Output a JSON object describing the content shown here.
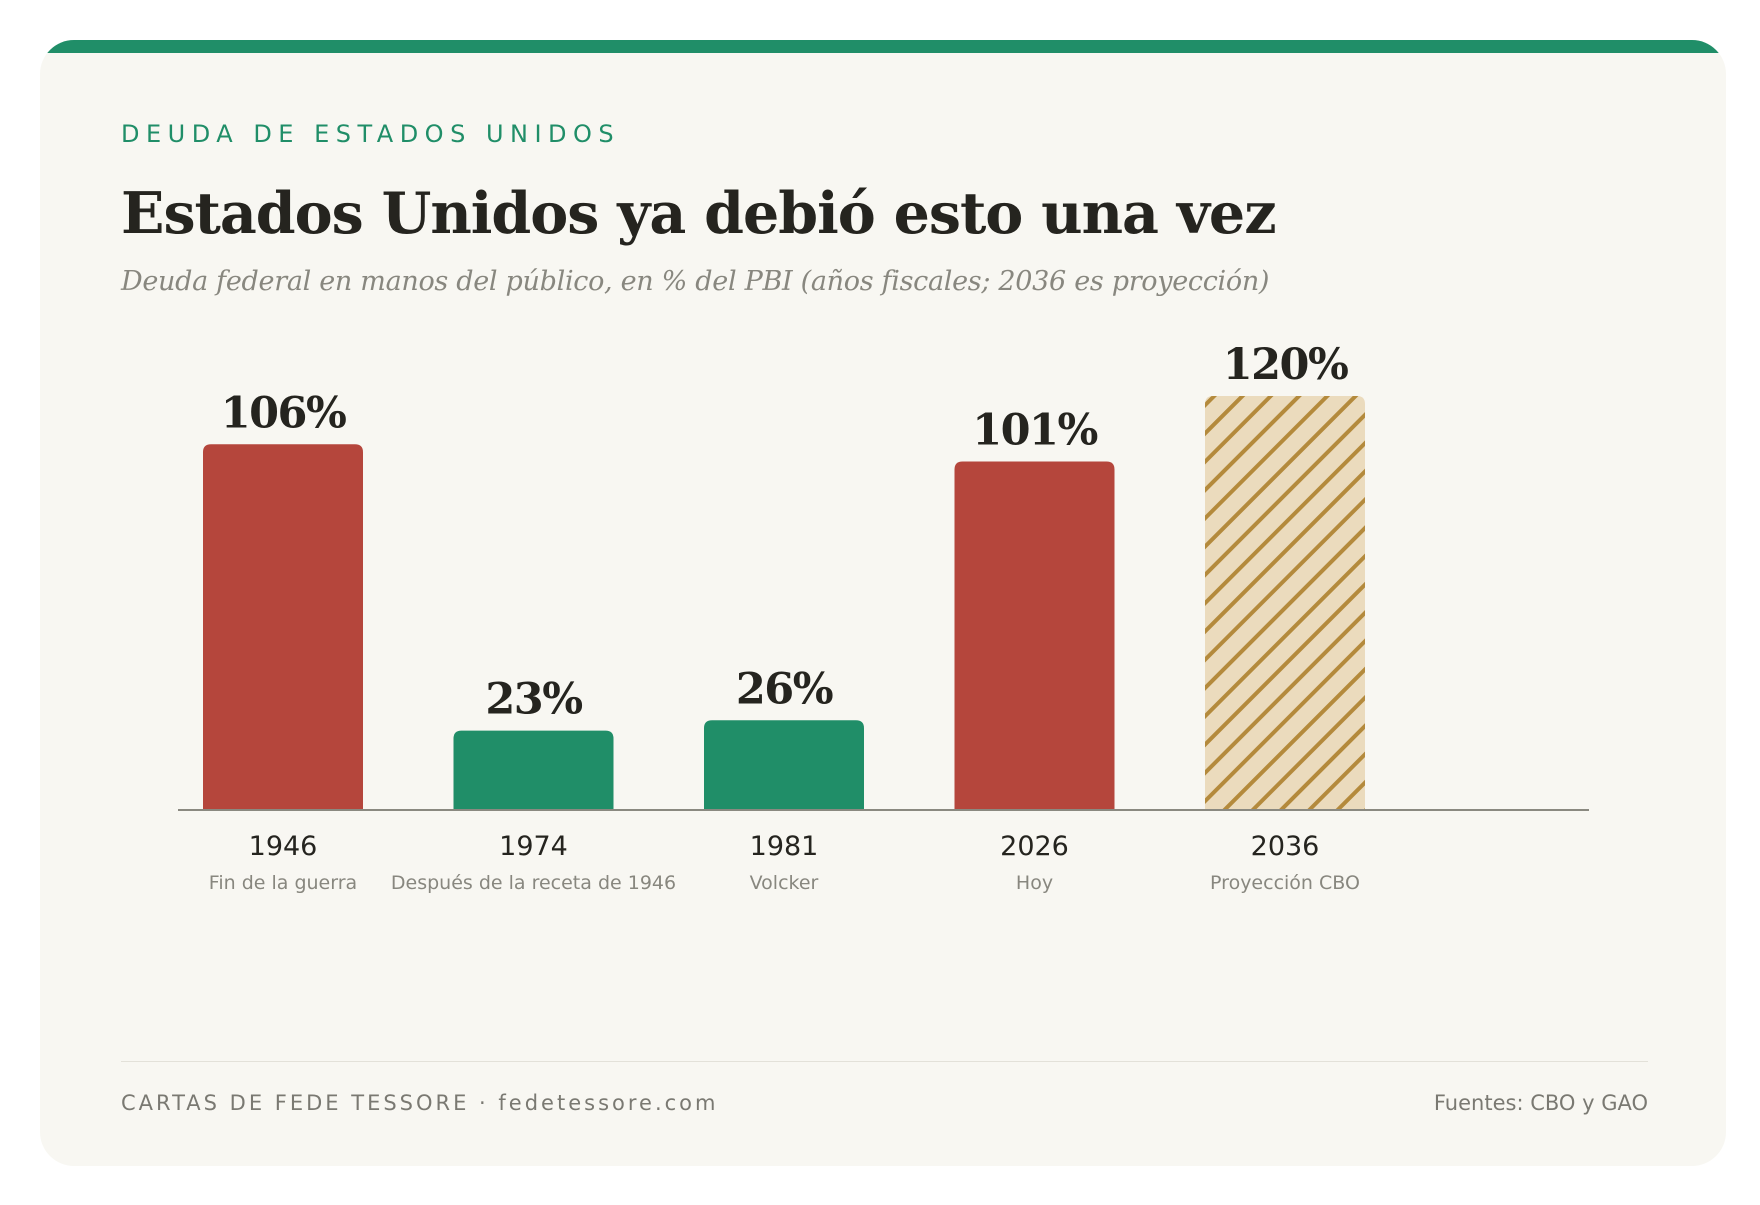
{
  "kicker": "DEUDA DE ESTADOS UNIDOS",
  "title": "Estados Unidos ya debió esto una vez",
  "subtitle": "Deuda federal en manos del público, en % del PBI (años fiscales; 2036 es proyección)",
  "footer": {
    "left": "CARTAS DE FEDE TESSORE · fedetessore.com",
    "right": "Fuentes: CBO y GAO"
  },
  "colors": {
    "accent": "#208e68",
    "high_debt": "#b5463c",
    "low_debt": "#208e68",
    "projection_fill": "#ebdbbd",
    "projection_hatch": "#b48a3c"
  },
  "chart_data": {
    "type": "bar",
    "categories": [
      "1946",
      "1974",
      "1981",
      "2026",
      "2036"
    ],
    "sublabels": [
      "Fin de la guerra",
      "Después de la receta de 1946",
      "Volcker",
      "Hoy",
      "Proyección CBO"
    ],
    "values": [
      106,
      23,
      26,
      101,
      120
    ],
    "value_labels": [
      "106%",
      "23%",
      "26%",
      "101%",
      "120%"
    ],
    "bar_styles": [
      "high",
      "low",
      "low",
      "high",
      "projection"
    ],
    "ylim": [
      0,
      120
    ],
    "grid": false
  }
}
